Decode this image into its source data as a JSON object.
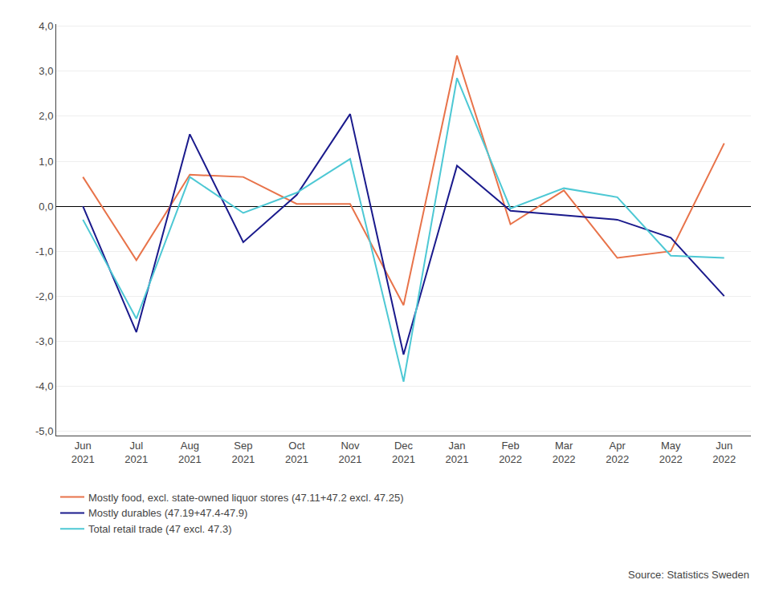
{
  "chart_data": {
    "type": "line",
    "categories": [
      "Jun\n2021",
      "Jul\n2021",
      "Aug\n2021",
      "Sep\n2021",
      "Oct\n2021",
      "Nov\n2021",
      "Dec\n2021",
      "Jan\n2021",
      "Feb\n2022",
      "Mar\n2022",
      "Apr\n2022",
      "May\n2022",
      "Jun\n2022"
    ],
    "series": [
      {
        "name": "Mostly food, excl. state-owned liquor stores (47.11+47.2 excl. 47.25)",
        "color": "#E8734A",
        "values": [
          0.65,
          -1.2,
          0.7,
          0.65,
          0.05,
          0.05,
          -2.2,
          3.35,
          -0.4,
          0.35,
          -1.15,
          -1.0,
          1.4
        ]
      },
      {
        "name": "Mostly durables (47.19+47.4-47.9)",
        "color": "#1A1A8C",
        "values": [
          0.0,
          -2.8,
          1.6,
          -0.8,
          0.25,
          2.05,
          -3.3,
          0.9,
          -0.1,
          -0.2,
          -0.3,
          -0.7,
          -2.0
        ]
      },
      {
        "name": "Total retail trade (47 excl. 47.3)",
        "color": "#4DC8D4",
        "values": [
          -0.3,
          -2.5,
          0.65,
          -0.15,
          0.3,
          1.05,
          -3.9,
          2.85,
          -0.05,
          0.4,
          0.2,
          -1.1,
          -1.15
        ]
      }
    ],
    "ylim": [
      -5.1,
      4.05
    ],
    "yticks": [
      {
        "value": -5.0,
        "label": "-5,0"
      },
      {
        "value": -4.0,
        "label": "-4,0"
      },
      {
        "value": -3.0,
        "label": "-3,0"
      },
      {
        "value": -2.0,
        "label": "-2,0"
      },
      {
        "value": -1.0,
        "label": "-1,0"
      },
      {
        "value": 0.0,
        "label": "0,0"
      },
      {
        "value": 1.0,
        "label": "1,0"
      },
      {
        "value": 2.0,
        "label": "2,0"
      },
      {
        "value": 3.0,
        "label": "3,0"
      },
      {
        "value": 4.0,
        "label": "4,0"
      }
    ],
    "grid": true,
    "legend": "below",
    "annotations": [
      "Source: Statistics Sweden"
    ]
  }
}
